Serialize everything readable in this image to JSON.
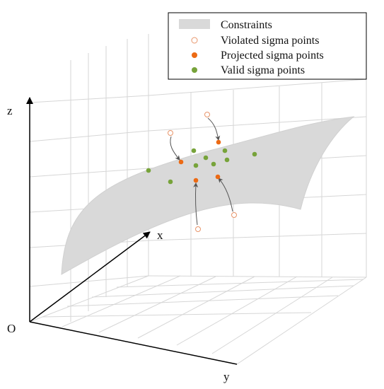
{
  "legend": {
    "items": [
      {
        "key": "constraints",
        "label": "Constraints"
      },
      {
        "key": "violated",
        "label": "Violated sigma points"
      },
      {
        "key": "projected",
        "label": "Projected sigma points"
      },
      {
        "key": "valid",
        "label": "Valid sigma points"
      }
    ]
  },
  "axes": {
    "origin": "O",
    "x": "x",
    "y": "y",
    "z": "z"
  },
  "colors": {
    "surface": "#d9d9d9",
    "grid": "#d6d6d6",
    "violated_stroke": "#e8956a",
    "projected": "#ec6a14",
    "valid": "#77a33a",
    "arrow": "#555555",
    "axis": "#000000"
  }
}
